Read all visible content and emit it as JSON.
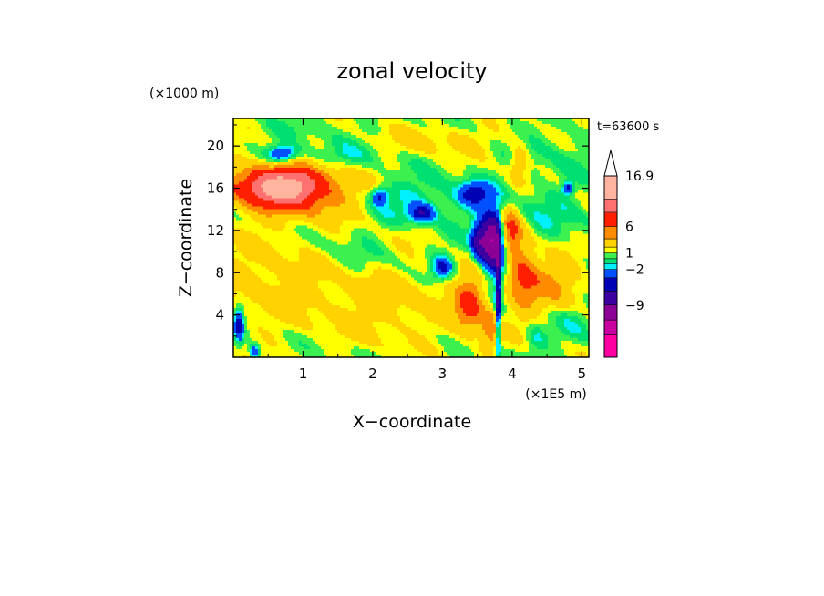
{
  "chart_data": {
    "type": "heatmap",
    "title": "zonal velocity",
    "xlabel": "X−coordinate",
    "ylabel": "Z−coordinate",
    "x_unit_label": "(×1E5 m)",
    "y_unit_label": "(×1000 m)",
    "time_label": "t=63600 s",
    "xlim": [
      0,
      5.1
    ],
    "ylim": [
      0,
      22.6
    ],
    "x_ticks": [
      1,
      2,
      3,
      4,
      5
    ],
    "y_ticks": [
      4,
      8,
      12,
      16,
      20
    ],
    "colorbar": {
      "levels": [
        -15,
        -12,
        -9,
        -6,
        -4,
        -2,
        -1,
        0,
        1,
        2,
        4,
        6,
        9,
        12,
        16.9
      ],
      "colors": [
        "#ff00a0",
        "#c800a0",
        "#8c0096",
        "#3c00a0",
        "#0000b4",
        "#0050ff",
        "#00f0ff",
        "#00e070",
        "#3cf050",
        "#ffff00",
        "#ffd200",
        "#ff8c00",
        "#ff1e00",
        "#ff7070",
        "#ffb4a0"
      ],
      "labels": [
        {
          "text": "16.9",
          "value": 16.9
        },
        {
          "text": "6",
          "value": 6
        },
        {
          "text": "1",
          "value": 1
        },
        {
          "text": "−2",
          "value": -2
        },
        {
          "text": "−9",
          "value": -9
        }
      ],
      "extend": "max"
    },
    "grid": false,
    "field_features": [
      {
        "x": 0.75,
        "z": 16.3,
        "value": 8,
        "sx": 0.35,
        "sz": 1.2
      },
      {
        "x": 0.4,
        "z": 16.0,
        "value": 5,
        "sx": 0.45,
        "sz": 1.5
      },
      {
        "x": 1.2,
        "z": 15.5,
        "value": 4,
        "sx": 0.5,
        "sz": 1.8
      },
      {
        "x": 0.7,
        "z": 19.2,
        "value": -6,
        "sx": 0.15,
        "sz": 0.6
      },
      {
        "x": 1.5,
        "z": 19.0,
        "value": -2,
        "sx": 0.4,
        "sz": 0.9
      },
      {
        "x": 2.6,
        "z": 15.0,
        "value": -2,
        "sx": 0.55,
        "sz": 1.5
      },
      {
        "x": 2.7,
        "z": 13.6,
        "value": -6,
        "sx": 0.12,
        "sz": 0.6
      },
      {
        "x": 2.1,
        "z": 15.2,
        "value": -5,
        "sx": 0.08,
        "sz": 0.6
      },
      {
        "x": 3.45,
        "z": 15.5,
        "value": -6,
        "sx": 0.15,
        "sz": 0.8
      },
      {
        "x": 3.72,
        "z": 11.0,
        "value": -14,
        "sx": 0.12,
        "sz": 2.0
      },
      {
        "x": 3.5,
        "z": 11.0,
        "value": -6,
        "sx": 0.07,
        "sz": 1.2
      },
      {
        "x": 3.8,
        "z": 5.0,
        "value": -8,
        "sx": 0.03,
        "sz": 3.5
      },
      {
        "x": 3.0,
        "z": 8.5,
        "value": -6,
        "sx": 0.1,
        "sz": 0.7
      },
      {
        "x": 3.95,
        "z": 12.0,
        "value": 7,
        "sx": 0.12,
        "sz": 1.5
      },
      {
        "x": 3.4,
        "z": 5.0,
        "value": 6,
        "sx": 0.15,
        "sz": 1.8
      },
      {
        "x": 4.15,
        "z": 8.0,
        "value": 5,
        "sx": 0.15,
        "sz": 2.5
      },
      {
        "x": 3.7,
        "z": 2.5,
        "value": 4,
        "sx": 0.1,
        "sz": 1.5
      },
      {
        "x": 4.6,
        "z": 7.0,
        "value": 3,
        "sx": 0.3,
        "sz": 2.0
      },
      {
        "x": 4.1,
        "z": 18.5,
        "value": 3,
        "sx": 0.1,
        "sz": 1.3
      },
      {
        "x": 0.5,
        "z": 7.5,
        "value": 2,
        "sx": 0.6,
        "sz": 3.0
      },
      {
        "x": 2.2,
        "z": 6.0,
        "value": 2,
        "sx": 0.7,
        "sz": 2.5
      },
      {
        "x": 2.0,
        "z": 10.0,
        "value": -1,
        "sx": 0.8,
        "sz": 2.0
      },
      {
        "x": 4.4,
        "z": 13.0,
        "value": -1.5,
        "sx": 0.5,
        "sz": 2.0
      },
      {
        "x": 4.5,
        "z": 19.5,
        "value": -1,
        "sx": 0.5,
        "sz": 2.0
      },
      {
        "x": 0.08,
        "z": 3.0,
        "value": -6,
        "sx": 0.05,
        "sz": 1.2
      },
      {
        "x": 0.3,
        "z": 0.5,
        "value": -5,
        "sx": 0.05,
        "sz": 0.5
      },
      {
        "x": 4.9,
        "z": 3.0,
        "value": -1.5,
        "sx": 0.2,
        "sz": 1.5
      },
      {
        "x": 2.0,
        "z": 2.5,
        "value": 0.5,
        "sx": 0.8,
        "sz": 1.5
      },
      {
        "x": 3.0,
        "z": 20.5,
        "value": 1.5,
        "sx": 0.7,
        "sz": 1.0
      },
      {
        "x": 1.0,
        "z": 21.5,
        "value": -0.5,
        "sx": 0.6,
        "sz": 1.0
      },
      {
        "x": 2.5,
        "z": 11.5,
        "value": 1,
        "sx": 0.3,
        "sz": 1.0
      },
      {
        "x": 4.35,
        "z": 2.0,
        "value": -2,
        "sx": 0.1,
        "sz": 1.0
      },
      {
        "x": 4.8,
        "z": 16.0,
        "value": -6,
        "sx": 0.05,
        "sz": 0.4
      }
    ]
  }
}
